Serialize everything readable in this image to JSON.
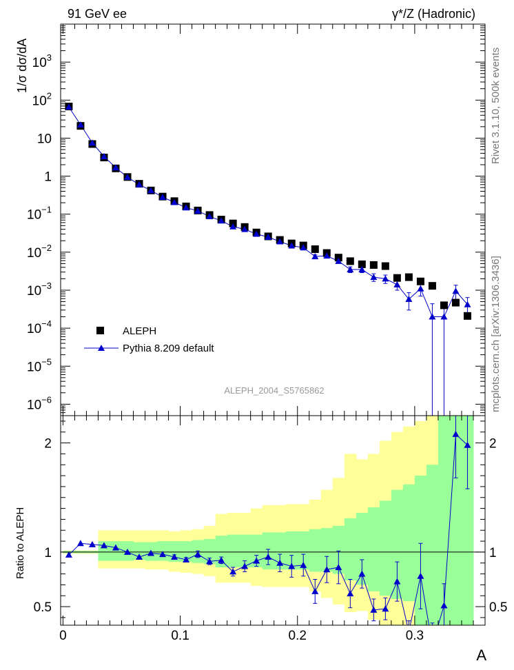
{
  "header": {
    "left_title": "91 GeV ee",
    "right_title": "γ*/Z (Hadronic)"
  },
  "side_labels": {
    "rivet": "Rivet 3.1.10,  500k events",
    "source": "mcplots.cern.ch [arXiv:1306.3436]"
  },
  "watermark": "ALEPH_2004_S5765862",
  "chart_data": [
    {
      "type": "scatter",
      "ylabel": "1/σ  dσ/dA",
      "yscale": "log",
      "ylim": [
        5e-07,
        10000
      ],
      "xlim": [
        -0.002,
        0.36
      ],
      "y_ticks": [
        {
          "value": 1e-06,
          "base": "10",
          "exp": "−6"
        },
        {
          "value": 1e-05,
          "base": "10",
          "exp": "−5"
        },
        {
          "value": 0.0001,
          "base": "10",
          "exp": "−4"
        },
        {
          "value": 0.001,
          "base": "10",
          "exp": "−3"
        },
        {
          "value": 0.01,
          "base": "10",
          "exp": "−2"
        },
        {
          "value": 0.1,
          "base": "10",
          "exp": "−1"
        },
        {
          "value": 1,
          "base": "1",
          "exp": ""
        },
        {
          "value": 10,
          "base": "10",
          "exp": ""
        },
        {
          "value": 100,
          "base": "10",
          "exp": "2"
        },
        {
          "value": 1000,
          "base": "10",
          "exp": "3"
        }
      ],
      "legend": {
        "position": "lower-left",
        "entries": [
          "ALEPH",
          "Pythia 8.209 default"
        ]
      },
      "series": [
        {
          "name": "ALEPH",
          "marker": "square",
          "color": "#000000",
          "x": [
            0.005,
            0.015,
            0.025,
            0.035,
            0.045,
            0.055,
            0.065,
            0.075,
            0.085,
            0.095,
            0.105,
            0.115,
            0.125,
            0.135,
            0.145,
            0.155,
            0.165,
            0.175,
            0.185,
            0.195,
            0.205,
            0.215,
            0.225,
            0.235,
            0.245,
            0.255,
            0.265,
            0.275,
            0.285,
            0.295,
            0.305,
            0.315,
            0.325,
            0.335,
            0.345
          ],
          "y": [
            68,
            21,
            7.0,
            3.1,
            1.6,
            0.95,
            0.63,
            0.42,
            0.29,
            0.22,
            0.16,
            0.125,
            0.095,
            0.072,
            0.057,
            0.046,
            0.033,
            0.026,
            0.021,
            0.017,
            0.015,
            0.012,
            0.0095,
            0.0072,
            0.0058,
            0.0048,
            0.0046,
            0.0043,
            0.0021,
            0.0022,
            0.0017,
            0.0013,
            0.0004,
            0.00047,
            0.00021
          ]
        },
        {
          "name": "Pythia 8.209 default",
          "marker": "triangle",
          "color": "#0000cc",
          "x": [
            0.005,
            0.015,
            0.025,
            0.035,
            0.045,
            0.055,
            0.065,
            0.075,
            0.085,
            0.095,
            0.105,
            0.115,
            0.125,
            0.135,
            0.145,
            0.155,
            0.165,
            0.175,
            0.185,
            0.195,
            0.205,
            0.215,
            0.225,
            0.235,
            0.245,
            0.255,
            0.265,
            0.275,
            0.285,
            0.295,
            0.305,
            0.315,
            0.325,
            0.335,
            0.345
          ],
          "y": [
            66,
            22.5,
            7.5,
            3.3,
            1.67,
            0.94,
            0.6,
            0.42,
            0.28,
            0.205,
            0.148,
            0.122,
            0.087,
            0.067,
            0.047,
            0.04,
            0.03,
            0.025,
            0.019,
            0.0148,
            0.0132,
            0.0077,
            0.008,
            0.0058,
            0.0035,
            0.0035,
            0.0022,
            0.002,
            0.0014,
            0.00058,
            0.0011,
            0.0002,
            0.0002,
            0.00095,
            0.00042
          ],
          "err_lo": [
            0,
            0,
            0,
            0,
            0,
            0,
            0,
            0,
            0,
            0,
            0,
            0,
            0,
            0,
            0,
            0,
            0,
            0,
            0,
            0.0012,
            0.0011,
            0.0008,
            0.0009,
            0.0007,
            0.0006,
            0.0006,
            0.0005,
            0.0005,
            0.0004,
            0.00028,
            0.0004,
            0.0002,
            0.0002,
            0.0004,
            0.00022
          ],
          "err_hi": [
            0,
            0,
            0,
            0,
            0,
            0,
            0,
            0,
            0,
            0,
            0,
            0,
            0,
            0,
            0,
            0,
            0,
            0,
            0,
            0.0012,
            0.0011,
            0.0008,
            0.0009,
            0.0007,
            0.0006,
            0.0006,
            0.0005,
            0.0005,
            0.0004,
            0.00028,
            0.0004,
            0.00024,
            0.00024,
            0.0004,
            0.00022
          ]
        }
      ]
    },
    {
      "type": "line",
      "ylabel": "Ratio to ALEPH",
      "xlabel": "A",
      "xlim": [
        -0.002,
        0.36
      ],
      "ylim": [
        0.33,
        2.25
      ],
      "y_ticks": [
        0.5,
        1,
        2
      ],
      "x_ticks": [
        0,
        0.1,
        0.2,
        0.3
      ],
      "x_tick_labels": [
        "0",
        "0.1",
        "0.2",
        "0.3"
      ],
      "y_tick_labels": [
        "0.5",
        "1",
        "2"
      ],
      "band_bins": [
        0,
        0.01,
        0.02,
        0.03,
        0.04,
        0.05,
        0.06,
        0.07,
        0.08,
        0.09,
        0.1,
        0.11,
        0.12,
        0.13,
        0.14,
        0.15,
        0.16,
        0.17,
        0.18,
        0.19,
        0.2,
        0.21,
        0.22,
        0.23,
        0.24,
        0.25,
        0.26,
        0.27,
        0.28,
        0.29,
        0.3,
        0.31,
        0.32,
        0.33,
        0.34,
        0.35
      ],
      "band_inner": {
        "color": "#99ff99",
        "lo": [
          0.99,
          0.99,
          0.99,
          0.92,
          0.92,
          0.92,
          0.93,
          0.92,
          0.92,
          0.91,
          0.91,
          0.9,
          0.89,
          0.86,
          0.86,
          0.86,
          0.86,
          0.84,
          0.84,
          0.84,
          0.84,
          0.82,
          0.82,
          0.8,
          0.74,
          0.7,
          0.64,
          0.6,
          0.57,
          0.55,
          0.33,
          0.33,
          0.33,
          0.33,
          0.33
        ],
        "hi": [
          1.01,
          1.01,
          1.01,
          1.1,
          1.1,
          1.1,
          1.09,
          1.09,
          1.1,
          1.1,
          1.1,
          1.11,
          1.12,
          1.15,
          1.16,
          1.16,
          1.16,
          1.18,
          1.18,
          1.19,
          1.19,
          1.21,
          1.22,
          1.24,
          1.31,
          1.36,
          1.41,
          1.47,
          1.57,
          1.62,
          1.7,
          1.8,
          2.25,
          2.25,
          2.25
        ]
      },
      "band_outer": {
        "color": "#ffff99",
        "lo": [
          0.985,
          0.985,
          0.985,
          0.85,
          0.85,
          0.85,
          0.85,
          0.84,
          0.84,
          0.82,
          0.81,
          0.8,
          0.78,
          0.72,
          0.72,
          0.72,
          0.69,
          0.68,
          0.68,
          0.68,
          0.68,
          0.64,
          0.58,
          0.52,
          0.45,
          0.46,
          0.38,
          0.33,
          0.33,
          0.33,
          0.33,
          0.33,
          0.33,
          0.33,
          0.33
        ],
        "hi": [
          1.015,
          1.015,
          1.015,
          1.2,
          1.2,
          1.2,
          1.2,
          1.2,
          1.2,
          1.19,
          1.2,
          1.21,
          1.24,
          1.35,
          1.36,
          1.36,
          1.4,
          1.43,
          1.43,
          1.44,
          1.44,
          1.48,
          1.57,
          1.68,
          1.9,
          1.85,
          1.9,
          2.02,
          2.1,
          2.15,
          2.2,
          2.25,
          2.25,
          2.25,
          2.25
        ]
      },
      "reference_line": 1,
      "series": [
        {
          "name": "Pythia 8.209 default",
          "marker": "triangle",
          "color": "#0000cc",
          "x": [
            0.005,
            0.015,
            0.025,
            0.035,
            0.045,
            0.055,
            0.065,
            0.075,
            0.085,
            0.095,
            0.105,
            0.115,
            0.125,
            0.135,
            0.145,
            0.155,
            0.165,
            0.175,
            0.185,
            0.195,
            0.205,
            0.215,
            0.225,
            0.235,
            0.245,
            0.255,
            0.265,
            0.275,
            0.285,
            0.295,
            0.305,
            0.315,
            0.325,
            0.335,
            0.345
          ],
          "y": [
            0.975,
            1.08,
            1.07,
            1.06,
            1.04,
            1.0,
            0.955,
            0.99,
            0.98,
            0.955,
            0.93,
            0.98,
            0.915,
            0.925,
            0.82,
            0.87,
            0.92,
            0.955,
            0.9,
            0.87,
            0.88,
            0.64,
            0.84,
            0.86,
            0.62,
            0.8,
            0.47,
            0.48,
            0.73,
            0.27,
            0.78,
            0.15,
            0.51,
            2.08,
            1.98
          ],
          "err_lo": [
            0,
            0,
            0,
            0,
            0,
            0,
            0,
            0,
            0,
            0.02,
            0.02,
            0.03,
            0.03,
            0.03,
            0.04,
            0.05,
            0.05,
            0.07,
            0.08,
            0.1,
            0.1,
            0.11,
            0.12,
            0.15,
            0.13,
            0.13,
            0.1,
            0.1,
            0.18,
            0.1,
            0.3,
            0.2,
            0.2,
            0.4,
            0.4
          ],
          "err_hi": [
            0,
            0,
            0,
            0,
            0,
            0,
            0,
            0,
            0,
            0.02,
            0.02,
            0.03,
            0.03,
            0.03,
            0.04,
            0.05,
            0.05,
            0.07,
            0.08,
            0.1,
            0.1,
            0.11,
            0.12,
            0.15,
            0.13,
            0.13,
            0.1,
            0.1,
            0.18,
            0.1,
            0.3,
            0.2,
            0.2,
            0.4,
            0.4
          ]
        }
      ]
    }
  ]
}
